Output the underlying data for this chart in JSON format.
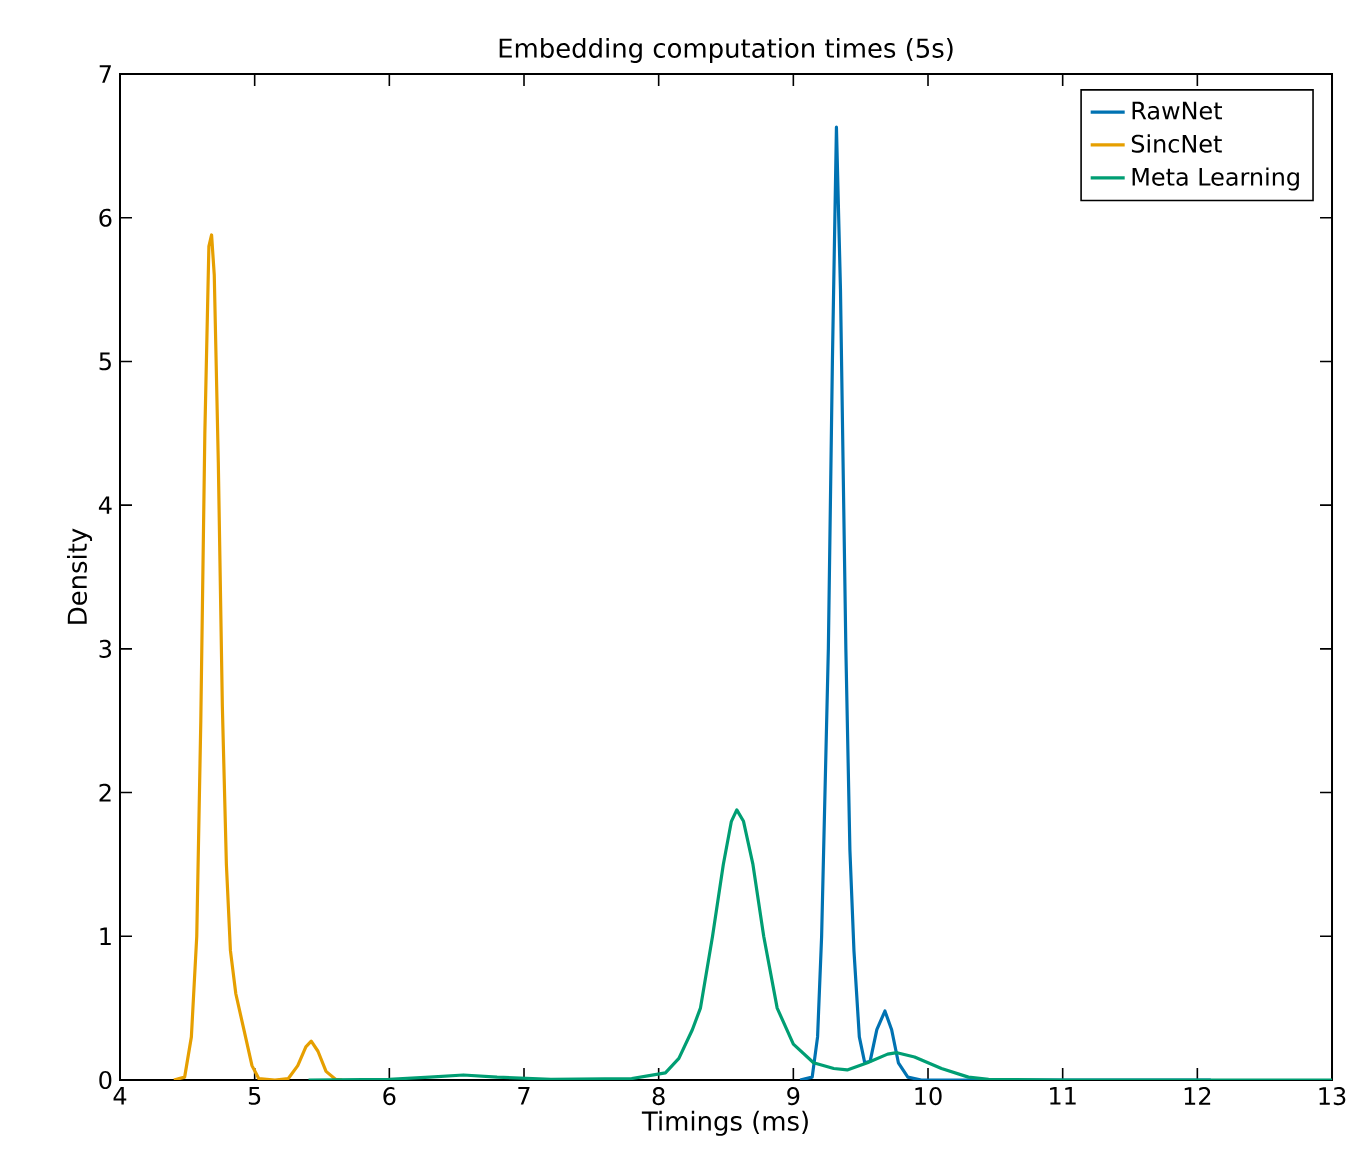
{
  "chart_data": {
    "type": "line",
    "title": "Embedding computation times (5s)",
    "xlabel": "Timings (ms)",
    "ylabel": "Density",
    "xlim": [
      4,
      13
    ],
    "ylim": [
      0,
      7
    ],
    "xticks": [
      4,
      5,
      6,
      7,
      8,
      9,
      10,
      11,
      12,
      13
    ],
    "yticks": [
      0,
      1,
      2,
      3,
      4,
      5,
      6,
      7
    ],
    "legend": "top right",
    "grid": false,
    "marker": "none",
    "line_style": "solid",
    "series": [
      {
        "name": "RawNet",
        "color": "#0072b2",
        "x": [
          9.05,
          9.14,
          9.18,
          9.21,
          9.24,
          9.26,
          9.29,
          9.32,
          9.35,
          9.39,
          9.42,
          9.45,
          9.49,
          9.53,
          9.57,
          9.62,
          9.68,
          9.73,
          9.78,
          9.85,
          9.95,
          12.1
        ],
        "values": [
          0,
          0.02,
          0.3,
          1.0,
          2.2,
          3.0,
          5.0,
          6.63,
          5.5,
          3.0,
          1.6,
          0.9,
          0.3,
          0.12,
          0.13,
          0.35,
          0.48,
          0.35,
          0.12,
          0.02,
          0,
          0
        ]
      },
      {
        "name": "SincNet",
        "color": "#e69f00",
        "x": [
          4.4,
          4.48,
          4.53,
          4.57,
          4.6,
          4.63,
          4.66,
          4.68,
          4.7,
          4.73,
          4.76,
          4.79,
          4.82,
          4.86,
          4.92,
          4.98,
          5.03,
          5.15,
          5.25,
          5.32,
          5.38,
          5.42,
          5.47,
          5.53,
          5.6,
          5.65
        ],
        "values": [
          0,
          0.02,
          0.3,
          1.0,
          2.5,
          4.5,
          5.8,
          5.88,
          5.6,
          4.3,
          2.6,
          1.5,
          0.9,
          0.6,
          0.35,
          0.1,
          0.01,
          0,
          0.01,
          0.1,
          0.23,
          0.27,
          0.2,
          0.06,
          0.005,
          0
        ]
      },
      {
        "name": "Meta Learning",
        "color": "#009e73",
        "x": [
          5.4,
          6.0,
          6.3,
          6.55,
          6.8,
          7.2,
          7.8,
          8.05,
          8.15,
          8.25,
          8.31,
          8.4,
          8.48,
          8.54,
          8.58,
          8.63,
          8.7,
          8.78,
          8.88,
          9.0,
          9.15,
          9.3,
          9.4,
          9.55,
          9.7,
          9.77,
          9.9,
          10.1,
          10.3,
          10.45,
          11,
          12,
          13
        ],
        "values": [
          0,
          0.005,
          0.02,
          0.035,
          0.02,
          0.005,
          0.01,
          0.05,
          0.15,
          0.35,
          0.5,
          1.0,
          1.5,
          1.8,
          1.88,
          1.8,
          1.5,
          1.0,
          0.5,
          0.25,
          0.12,
          0.08,
          0.07,
          0.12,
          0.18,
          0.19,
          0.16,
          0.08,
          0.02,
          0.005,
          0,
          0,
          0
        ]
      }
    ]
  }
}
